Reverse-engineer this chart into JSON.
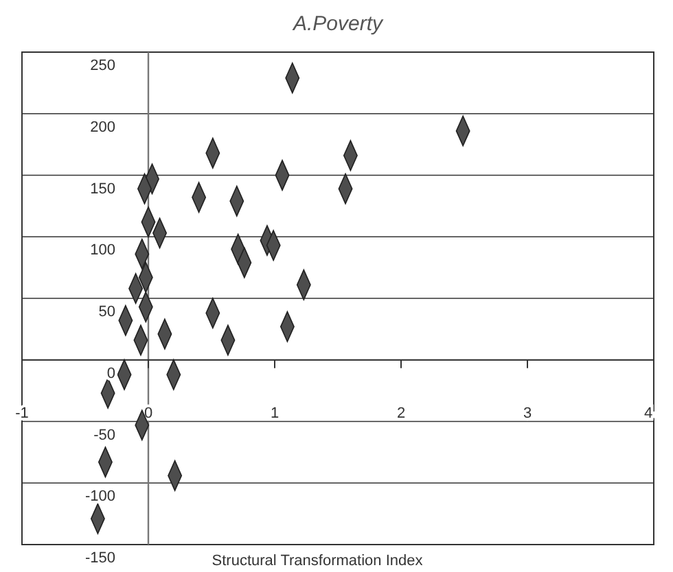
{
  "chart_data": {
    "type": "scatter",
    "title": "A.Poverty",
    "xlabel": "Structural Transformation Index",
    "x": [
      1.14,
      0.51,
      1.06,
      0.03,
      -0.03,
      0.4,
      0.7,
      0.0,
      0.09,
      0.94,
      0.99,
      0.71,
      0.76,
      -0.05,
      -0.02,
      1.23,
      -0.1,
      -0.02,
      0.51,
      -0.18,
      0.13,
      -0.06,
      0.63,
      1.1,
      -0.19,
      0.2,
      -0.32,
      -0.05,
      -0.34,
      0.21,
      -0.4,
      2.49,
      1.6,
      1.56
    ],
    "series": [
      {
        "color": "#4d4d4d",
        "values": [
          229,
          168,
          150,
          147,
          139,
          132,
          129,
          112,
          103,
          97,
          93,
          90,
          79,
          86,
          67,
          61,
          58,
          43,
          38,
          32,
          21,
          16,
          16,
          27,
          -12,
          -12,
          -27,
          -53,
          -83,
          -94,
          -129,
          186,
          166,
          139
        ]
      }
    ],
    "xlim": [
      -1,
      4
    ],
    "ylim": [
      -150,
      250
    ],
    "xticks": [
      -1,
      0,
      1,
      2,
      3,
      4
    ],
    "yticks": [
      -150,
      -100,
      -50,
      0,
      50,
      100,
      150,
      200,
      250
    ],
    "grid": "y",
    "marker": "diamond"
  }
}
